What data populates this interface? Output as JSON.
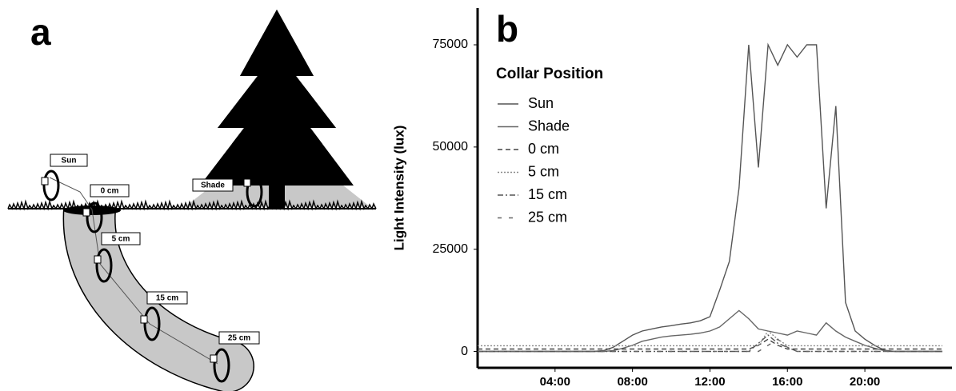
{
  "panel_a": {
    "label": "a",
    "labels": [
      "Sun",
      "0 cm",
      "5 cm",
      "15 cm",
      "25 cm",
      "Shade"
    ]
  },
  "chart_data": {
    "type": "line",
    "panel_label": "b",
    "y_label": "Light Intensity (lux)",
    "legend_title": "Collar Position",
    "x": [
      0,
      0.5,
      1,
      1.5,
      2,
      2.5,
      3,
      3.5,
      4,
      4.5,
      5,
      5.5,
      6,
      6.5,
      7,
      7.5,
      8,
      8.5,
      9,
      9.5,
      10,
      10.5,
      11,
      11.5,
      12,
      12.5,
      13,
      13.5,
      14,
      14.5,
      15,
      15.5,
      16,
      16.5,
      17,
      17.5,
      18,
      18.5,
      19,
      19.5,
      20,
      20.5,
      21,
      21.5,
      22,
      22.5,
      23,
      23.5,
      24
    ],
    "xlim": [
      0,
      24.5
    ],
    "xticks": [
      {
        "value": 4,
        "label": "04:00"
      },
      {
        "value": 8,
        "label": "08:00"
      },
      {
        "value": 12,
        "label": "12:00"
      },
      {
        "value": 16,
        "label": "16:00"
      },
      {
        "value": 20,
        "label": "20:00"
      }
    ],
    "ylim": [
      -4000,
      84000
    ],
    "yticks": [
      0,
      25000,
      50000,
      75000
    ],
    "series": [
      {
        "name": "Sun",
        "color": "#555555",
        "dash": "none",
        "values": [
          0,
          0,
          0,
          0,
          0,
          0,
          0,
          0,
          0,
          0,
          0,
          0,
          0,
          200,
          1000,
          2500,
          4000,
          5000,
          5500,
          6000,
          6300,
          6700,
          7000,
          7500,
          8500,
          15000,
          22000,
          40000,
          75000,
          45000,
          75000,
          70000,
          75000,
          72000,
          75000,
          75000,
          35000,
          60000,
          12000,
          5000,
          3000,
          1500,
          300,
          0,
          0,
          0,
          0,
          0,
          0
        ]
      },
      {
        "name": "Shade",
        "color": "#666666",
        "dash": "none",
        "values": [
          0,
          0,
          0,
          0,
          0,
          0,
          0,
          0,
          0,
          0,
          0,
          0,
          0,
          0,
          200,
          800,
          1500,
          2500,
          3000,
          3500,
          3800,
          4000,
          4200,
          4500,
          5000,
          6000,
          8000,
          10000,
          8000,
          5500,
          5000,
          4500,
          4000,
          5000,
          4500,
          4000,
          7000,
          5000,
          3500,
          2500,
          1500,
          800,
          200,
          0,
          0,
          0,
          0,
          0,
          0
        ]
      },
      {
        "name": "0 cm",
        "color": "#444444",
        "dash": "6 4",
        "values": [
          600,
          600,
          600,
          600,
          600,
          600,
          600,
          600,
          600,
          600,
          600,
          600,
          600,
          600,
          600,
          600,
          600,
          600,
          600,
          600,
          600,
          600,
          600,
          600,
          600,
          600,
          600,
          600,
          600,
          1500,
          3000,
          1500,
          600,
          600,
          600,
          600,
          600,
          600,
          600,
          600,
          600,
          600,
          600,
          600,
          600,
          600,
          600,
          600,
          600
        ]
      },
      {
        "name": "5 cm",
        "color": "#888888",
        "dash": "2 2",
        "values": [
          1400,
          1400,
          1400,
          1400,
          1400,
          1400,
          1400,
          1400,
          1400,
          1400,
          1400,
          1400,
          1400,
          1400,
          1400,
          1400,
          1400,
          1400,
          1400,
          1400,
          1400,
          1400,
          1400,
          1400,
          1400,
          1400,
          1400,
          1400,
          1400,
          1400,
          5000,
          3000,
          1400,
          1400,
          1400,
          1400,
          1400,
          1400,
          1400,
          1400,
          1400,
          1400,
          1400,
          1400,
          1400,
          1400,
          1400,
          1400,
          1400
        ]
      },
      {
        "name": "15 cm",
        "color": "#555555",
        "dash": "7 3 2 3",
        "values": [
          0,
          0,
          0,
          0,
          0,
          0,
          0,
          0,
          0,
          0,
          0,
          0,
          0,
          0,
          0,
          0,
          0,
          0,
          0,
          0,
          0,
          0,
          0,
          0,
          0,
          0,
          0,
          0,
          0,
          2000,
          4000,
          2000,
          1000,
          0,
          0,
          0,
          0,
          0,
          0,
          0,
          0,
          0,
          0,
          0,
          0,
          0,
          0,
          0,
          0
        ]
      },
      {
        "name": "25 cm",
        "color": "#666666",
        "dash": "5 9",
        "values": [
          0,
          0,
          0,
          0,
          0,
          0,
          0,
          0,
          0,
          0,
          0,
          0,
          0,
          0,
          0,
          0,
          0,
          0,
          0,
          0,
          0,
          0,
          0,
          0,
          0,
          0,
          0,
          0,
          0,
          0,
          1500,
          3000,
          1000,
          0,
          0,
          0,
          0,
          0,
          0,
          0,
          0,
          0,
          0,
          0,
          0,
          0,
          0,
          0,
          0
        ]
      }
    ]
  }
}
